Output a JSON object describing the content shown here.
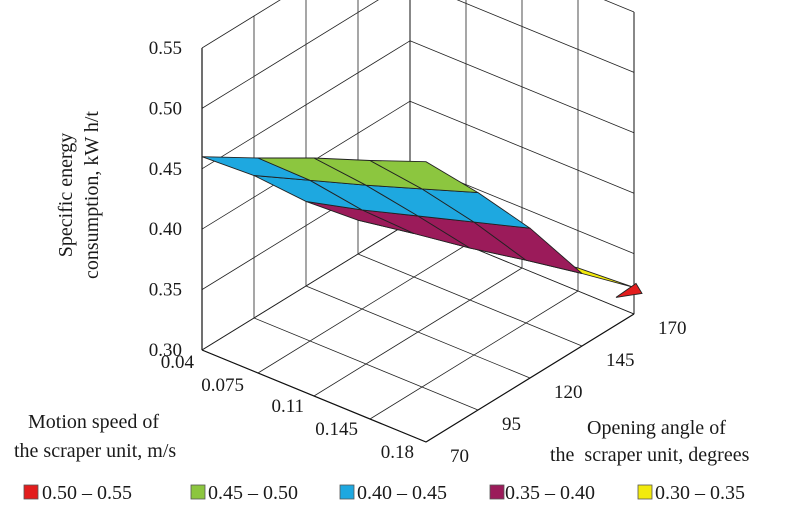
{
  "chart_data": {
    "type": "surface",
    "title": "",
    "zlabel_lines": [
      "Specific energy",
      "consumption, kW h/t"
    ],
    "xlabel_lines": [
      "Motion speed of",
      "the scraper unit, m/s"
    ],
    "ylabel_lines": [
      "Opening angle of",
      "the  scraper unit, degrees"
    ],
    "x_ticks": [
      "0.04",
      "0.075",
      "0.11",
      "0.145",
      "0.18"
    ],
    "x_values": [
      0.04,
      0.075,
      0.11,
      0.145,
      0.18
    ],
    "y_ticks": [
      "70",
      "95",
      "120",
      "145",
      "170"
    ],
    "y_values": [
      70,
      95,
      120,
      145,
      170
    ],
    "z_ticks": [
      "0.30",
      "0.35",
      "0.40",
      "0.45",
      "0.50",
      "0.55"
    ],
    "zlim": [
      0.3,
      0.55
    ],
    "grid": true,
    "legend_position": "bottom",
    "legend": [
      {
        "label": "0.50 – 0.55",
        "color": "#e21d1d"
      },
      {
        "label": "0.45 – 0.50",
        "color": "#8cc63f"
      },
      {
        "label": "0.40 – 0.45",
        "color": "#1ea8e0"
      },
      {
        "label": "0.35 – 0.40",
        "color": "#9b1b5a"
      },
      {
        "label": "0.30 – 0.35",
        "color": "#f2ea0d"
      }
    ],
    "z": [
      [
        0.46,
        0.478,
        0.497,
        0.514,
        0.532
      ],
      [
        0.418,
        0.433,
        0.448,
        0.464,
        0.48
      ],
      [
        0.37,
        0.382,
        0.396,
        0.41,
        0.424
      ],
      [
        0.328,
        0.336,
        0.343,
        0.352,
        0.36
      ],
      [
        0.305,
        0.31,
        0.314,
        0.319,
        0.322
      ]
    ]
  }
}
